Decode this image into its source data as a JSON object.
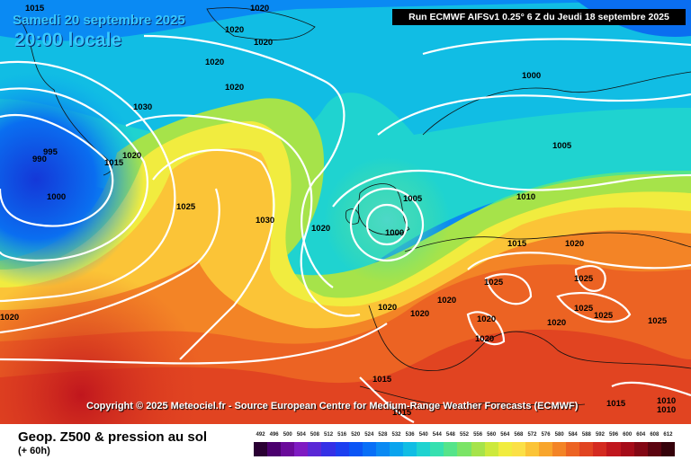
{
  "header": {
    "date_label": "Samedi 20 septembre 2025",
    "local_time": "20:00 locale",
    "run_info": "Run ECMWF AIFSv1 0.25° 6 Z du Jeudi 18 septembre 2025"
  },
  "credit": "Copyright © 2025 Meteociel.fr - Source European Centre for Medium-Range Weather Forecasts (ECMWF)",
  "footer": {
    "product": "Geop. Z500 & pression au sol",
    "lead_time": "(+ 60h)"
  },
  "legend": {
    "values": [
      "492",
      "496",
      "500",
      "504",
      "508",
      "512",
      "516",
      "520",
      "524",
      "528",
      "532",
      "536",
      "540",
      "544",
      "548",
      "552",
      "556",
      "560",
      "564",
      "568",
      "572",
      "576",
      "580",
      "584",
      "588",
      "592",
      "596",
      "600",
      "604",
      "608",
      "612"
    ],
    "colors": [
      "#2a0033",
      "#4b006e",
      "#6a0a9a",
      "#7f1bc2",
      "#5a28d6",
      "#3530e6",
      "#1c3ff0",
      "#0b55f5",
      "#086ff7",
      "#0a8af3",
      "#0aa4ee",
      "#11bde4",
      "#1fd3d0",
      "#36e0b0",
      "#55e48a",
      "#7be466",
      "#a6e34a",
      "#cde93c",
      "#f1ec3f",
      "#fbe046",
      "#fbc437",
      "#f8a52c",
      "#f38426",
      "#ec6323",
      "#e14421",
      "#d42a20",
      "#c0161d",
      "#a50b18",
      "#830714",
      "#5c0410",
      "#35020a"
    ]
  },
  "map_labels": {
    "isobars": [
      "1015",
      "1020",
      "1020",
      "1020",
      "1020",
      "1000",
      "1020",
      "1005",
      "995",
      "990",
      "1015",
      "1020",
      "1000",
      "1025",
      "1030",
      "1020",
      "1005",
      "1000",
      "1010",
      "1015",
      "1020",
      "1025",
      "1025",
      "1025",
      "1020",
      "1020",
      "1020",
      "1020",
      "1020",
      "1025",
      "1025",
      "1020",
      "1015",
      "1015",
      "1015",
      "1010",
      "1010",
      "1020",
      "1030"
    ]
  }
}
